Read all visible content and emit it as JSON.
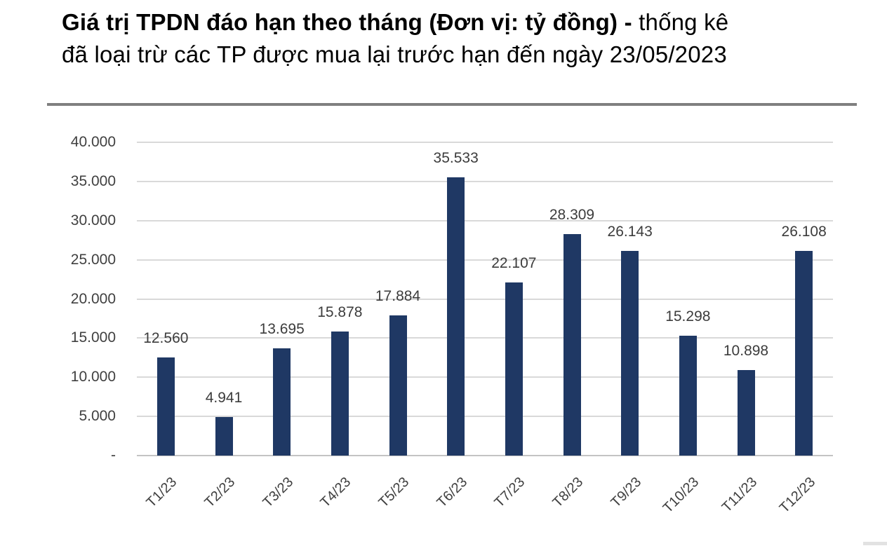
{
  "header": {
    "title_bold": "Giá trị TPDN đáo hạn theo tháng (Đơn vị: tỷ đồng) - ",
    "title_regular_line1": "thống kê",
    "title_line2": "đã loại trừ các TP được mua lại trước hạn đến ngày 23/05/2023"
  },
  "colors": {
    "bar": "#1f3864",
    "gridline": "#d9d9d9",
    "axis_line": "#c4c4c4",
    "separator": "#7f7f7f",
    "label_text": "#404040",
    "title_text": "#000000"
  },
  "chart_data": {
    "type": "bar",
    "title": "Giá trị TPDN đáo hạn theo tháng (Đơn vị: tỷ đồng)",
    "categories": [
      "T1/23",
      "T2/23",
      "T3/23",
      "T4/23",
      "T5/23",
      "T6/23",
      "T7/23",
      "T8/23",
      "T9/23",
      "T10/23",
      "T11/23",
      "T12/23"
    ],
    "values": [
      12560,
      4941,
      13695,
      15878,
      17884,
      35533,
      22107,
      28309,
      26143,
      15298,
      10898,
      26108
    ],
    "data_labels": [
      "12.560",
      "4.941",
      "13.695",
      "15.878",
      "17.884",
      "35.533",
      "22.107",
      "28.309",
      "26.143",
      "15.298",
      "10.898",
      "26.108"
    ],
    "y_tick_labels": [
      "40.000",
      "35.000",
      "30.000",
      "25.000",
      "20.000",
      "15.000",
      "10.000",
      "5.000",
      "-"
    ],
    "ylim": [
      0,
      40000
    ],
    "grid": true,
    "legend": "none",
    "xlabel": "",
    "ylabel": ""
  }
}
